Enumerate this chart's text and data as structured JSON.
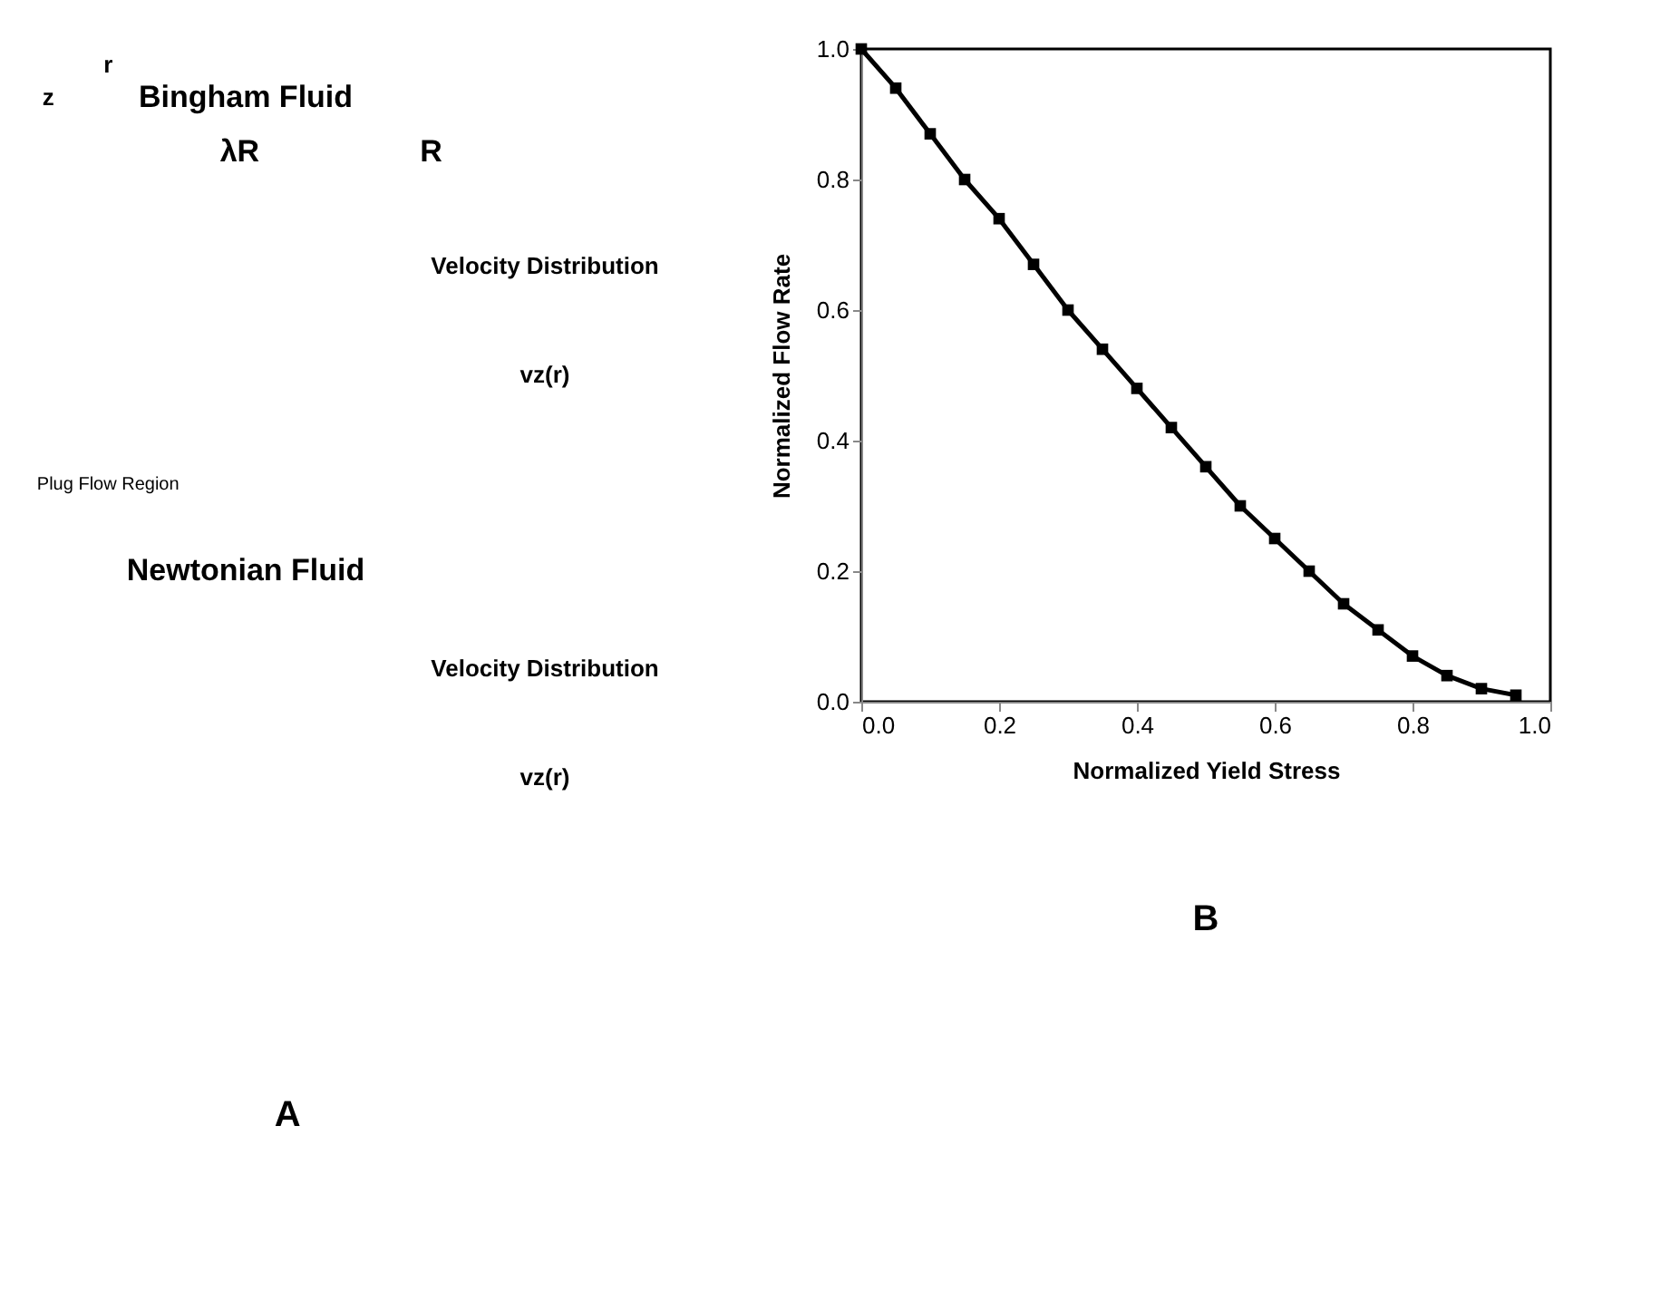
{
  "chart_data": [
    {
      "type": "other",
      "annotations": [
        "r",
        "z",
        "Bingham Fluid",
        "λR",
        "R",
        "Velocity Distribution",
        "vz(r)",
        "Plug Flow Region",
        "Newtonian Fluid",
        "Velocity Distribution",
        "vz(r)",
        "A"
      ]
    },
    {
      "type": "line",
      "xlabel": "Normalized Yield Stress",
      "ylabel": "Normalized Flow Rate",
      "x": [
        0,
        0.05,
        0.1,
        0.15,
        0.2,
        0.25,
        0.3,
        0.35,
        0.4,
        0.45,
        0.5,
        0.55,
        0.6,
        0.65,
        0.7,
        0.75,
        0.8,
        0.85,
        0.9,
        0.95
      ],
      "series": [
        {
          "color": "#000000",
          "values": [
            1.0,
            0.94,
            0.87,
            0.8,
            0.74,
            0.67,
            0.6,
            0.54,
            0.48,
            0.42,
            0.36,
            0.3,
            0.25,
            0.2,
            0.15,
            0.11,
            0.07,
            0.04,
            0.02,
            0.01
          ]
        }
      ],
      "xlim": [
        0,
        1
      ],
      "ylim": [
        0,
        1
      ],
      "xticks": [
        {
          "value": 0,
          "label": "0.0"
        },
        0.2,
        0.4,
        0.6,
        0.8,
        {
          "value": 1,
          "label": "1.0"
        }
      ],
      "yticks": [
        {
          "value": 0,
          "label": "0.0"
        },
        0.2,
        0.4,
        0.6,
        0.8,
        {
          "value": 1,
          "label": "1.0"
        }
      ],
      "marker": "square",
      "line_style": "solid",
      "annotations": [
        "B"
      ]
    }
  ]
}
